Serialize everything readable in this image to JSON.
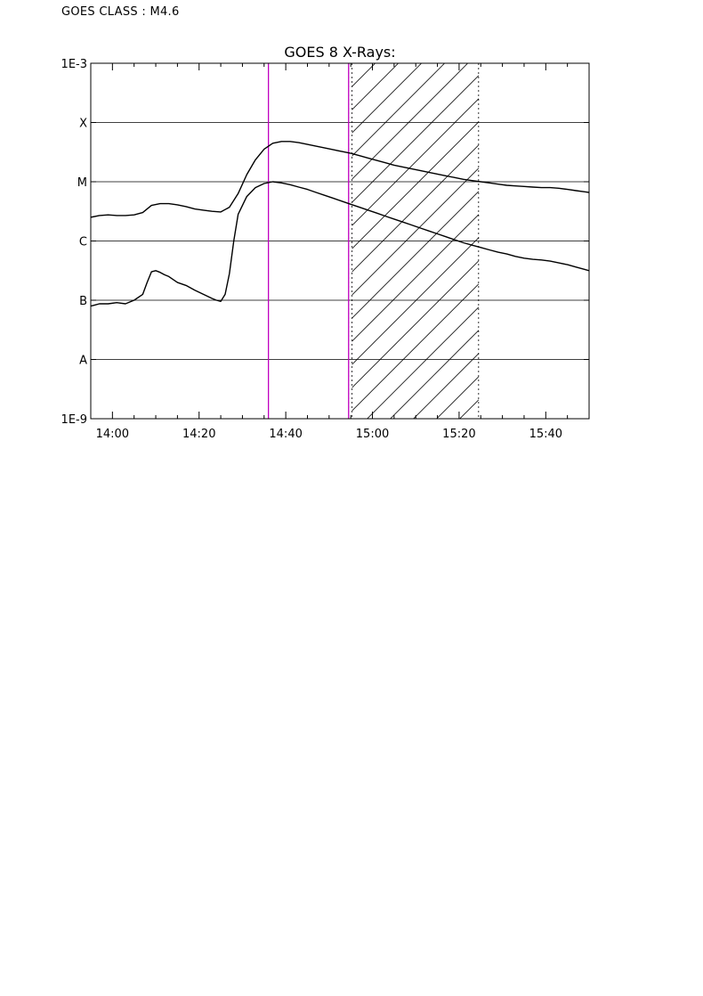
{
  "header": {
    "goes_class": "GOES CLASS : M4.6"
  },
  "chart_data": {
    "type": "line",
    "title": "GOES 8 X-Rays:",
    "xlabel": "",
    "ylabel": "",
    "x_unit": "minutes since 00:00 UT",
    "xlim": [
      835,
      950
    ],
    "ylim": [
      -9,
      -3
    ],
    "y_scale": "log10 flux (W/m^2)",
    "grid": "horizontal lines at class boundaries",
    "x_ticks": [
      {
        "value": 840,
        "label": "14:00"
      },
      {
        "value": 860,
        "label": "14:20"
      },
      {
        "value": 880,
        "label": "14:40"
      },
      {
        "value": 900,
        "label": "15:00"
      },
      {
        "value": 920,
        "label": "15:20"
      },
      {
        "value": 940,
        "label": "15:40"
      }
    ],
    "y_labels": [
      {
        "value": -3,
        "label": "1E-3"
      },
      {
        "value": -4,
        "label": "X"
      },
      {
        "value": -5,
        "label": "M"
      },
      {
        "value": -6,
        "label": "C"
      },
      {
        "value": -7,
        "label": "B"
      },
      {
        "value": -8,
        "label": "A"
      },
      {
        "value": -9,
        "label": "1E-9"
      }
    ],
    "vertical_lines": [
      {
        "x": 876,
        "color": "#c000c0",
        "style": "solid"
      },
      {
        "x": 894.5,
        "color": "#c000c0",
        "style": "solid"
      }
    ],
    "hatched_region": {
      "x_start": 895.3,
      "x_end": 924.5,
      "border_style": "dotted"
    },
    "series": [
      {
        "x": [
          835,
          837,
          839,
          841,
          843,
          845,
          847,
          849,
          851,
          853,
          855,
          857,
          859,
          861,
          863,
          865,
          867,
          869,
          871,
          873,
          875,
          877,
          879,
          881,
          883,
          885,
          887,
          889,
          891,
          893,
          895,
          897,
          899,
          901,
          903,
          905,
          907,
          909,
          911,
          913,
          915,
          917,
          919,
          921,
          923,
          925,
          927,
          929,
          931,
          933,
          935,
          937,
          939,
          941,
          943,
          945,
          947,
          949,
          950
        ],
        "values": [
          -5.6,
          -5.57,
          -5.56,
          -5.57,
          -5.57,
          -5.56,
          -5.52,
          -5.4,
          -5.37,
          -5.37,
          -5.39,
          -5.42,
          -5.46,
          -5.48,
          -5.5,
          -5.51,
          -5.43,
          -5.2,
          -4.88,
          -4.63,
          -4.45,
          -4.35,
          -4.32,
          -4.32,
          -4.34,
          -4.37,
          -4.4,
          -4.43,
          -4.46,
          -4.49,
          -4.52,
          -4.56,
          -4.6,
          -4.64,
          -4.68,
          -4.72,
          -4.75,
          -4.78,
          -4.81,
          -4.84,
          -4.87,
          -4.9,
          -4.93,
          -4.96,
          -4.98,
          -5.0,
          -5.02,
          -5.04,
          -5.06,
          -5.07,
          -5.08,
          -5.09,
          -5.1,
          -5.1,
          -5.11,
          -5.13,
          -5.15,
          -5.17,
          -5.18
        ],
        "color": "#000000"
      },
      {
        "x": [
          835,
          836,
          837,
          839,
          841,
          843,
          845,
          847,
          848,
          849,
          850,
          851,
          852,
          853,
          855,
          857,
          859,
          861,
          863,
          864,
          865,
          866,
          867,
          868,
          869,
          871,
          873,
          875,
          877,
          879,
          881,
          883,
          885,
          887,
          889,
          891,
          893,
          895,
          897,
          899,
          901,
          903,
          905,
          907,
          909,
          911,
          913,
          915,
          917,
          919,
          921,
          923,
          925,
          927,
          929,
          931,
          933,
          935,
          937,
          939,
          941,
          943,
          945,
          947,
          949,
          950
        ],
        "values": [
          -7.1,
          -7.08,
          -7.06,
          -7.06,
          -7.04,
          -7.06,
          -7.0,
          -6.9,
          -6.7,
          -6.52,
          -6.5,
          -6.53,
          -6.57,
          -6.6,
          -6.7,
          -6.75,
          -6.83,
          -6.9,
          -6.97,
          -7.0,
          -7.02,
          -6.9,
          -6.55,
          -6.0,
          -5.55,
          -5.25,
          -5.1,
          -5.03,
          -5.0,
          -5.02,
          -5.05,
          -5.09,
          -5.13,
          -5.18,
          -5.23,
          -5.28,
          -5.33,
          -5.38,
          -5.43,
          -5.48,
          -5.53,
          -5.58,
          -5.63,
          -5.68,
          -5.73,
          -5.78,
          -5.83,
          -5.88,
          -5.93,
          -5.98,
          -6.03,
          -6.07,
          -6.11,
          -6.15,
          -6.19,
          -6.22,
          -6.26,
          -6.29,
          -6.31,
          -6.32,
          -6.34,
          -6.37,
          -6.4,
          -6.44,
          -6.48,
          -6.5
        ],
        "color": "#000000"
      }
    ]
  }
}
